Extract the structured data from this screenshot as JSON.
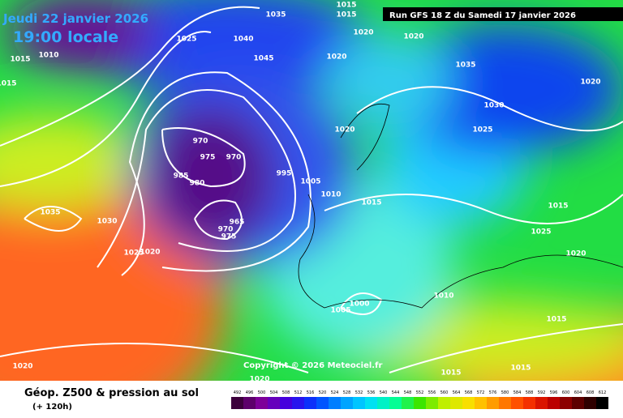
{
  "header": {
    "date": "Jeudi 22 janvier 2026",
    "time": "19:00 locale",
    "run": "Run GFS 18 Z du Samedi 17 janvier 2026"
  },
  "isobar_labels": [
    "1015",
    "1035",
    "1015",
    "1020",
    "1020",
    "1035",
    "1020",
    "1030",
    "1025",
    "1025",
    "1040",
    "1045",
    "1010",
    "1015",
    "1015",
    "1020",
    "1020",
    "970",
    "975",
    "970",
    "985",
    "980",
    "995",
    "1005",
    "1010",
    "1015",
    "965",
    "970",
    "975",
    "1035",
    "1030",
    "1025",
    "1020",
    "1015",
    "1025",
    "1020",
    "1010",
    "1000",
    "1005",
    "1015",
    "1015",
    "1015",
    "1020",
    "1020"
  ],
  "footer": {
    "copyright": "Copyright © 2026 Meteociel.fr",
    "legend_title": "Géop. Z500 & pression au sol",
    "lead_time": "(+ 120h)"
  },
  "colorbar_labels": [
    492,
    496,
    500,
    504,
    508,
    512,
    516,
    520,
    524,
    528,
    532,
    536,
    540,
    544,
    548,
    552,
    556,
    560,
    564,
    568,
    572,
    576,
    580,
    584,
    588,
    592,
    596,
    600,
    604,
    608,
    612
  ]
}
